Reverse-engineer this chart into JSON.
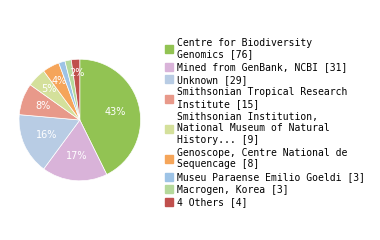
{
  "labels": [
    "Centre for Biodiversity\nGenomics [76]",
    "Mined from GenBank, NCBI [31]",
    "Unknown [29]",
    "Smithsonian Tropical Research\nInstitute [15]",
    "Smithsonian Institution,\nNational Museum of Natural\nHistory... [9]",
    "Genoscope, Centre National de\nSequencage [8]",
    "Museu Paraense Emilio Goeldi [3]",
    "Macrogen, Korea [3]",
    "4 Others [4]"
  ],
  "legend_labels": [
    "Centre for Biodiversity\nGenomics [76]",
    "Mined from GenBank, NCBI [31]",
    "Unknown [29]",
    "Smithsonian Tropical Research\nInstitute [15]",
    "Smithsonian Institution,\nNational Museum of Natural\nHistory... [9]",
    "Genoscope, Centre National de\nSequencage [8]",
    "Museu Paraense Emilio Goeldi [3]",
    "Macrogen, Korea [3]",
    "4 Others [4]"
  ],
  "values": [
    76,
    31,
    29,
    15,
    9,
    8,
    3,
    3,
    4
  ],
  "colors": [
    "#92c353",
    "#d9b3d9",
    "#b8cce4",
    "#e8998a",
    "#d4e09b",
    "#f5a55a",
    "#9dc3e6",
    "#b5d99b",
    "#c0504d"
  ],
  "background_color": "#ffffff",
  "text_color": "#ffffff",
  "fontsize_pct": 7.0,
  "fontsize_legend": 7.0
}
